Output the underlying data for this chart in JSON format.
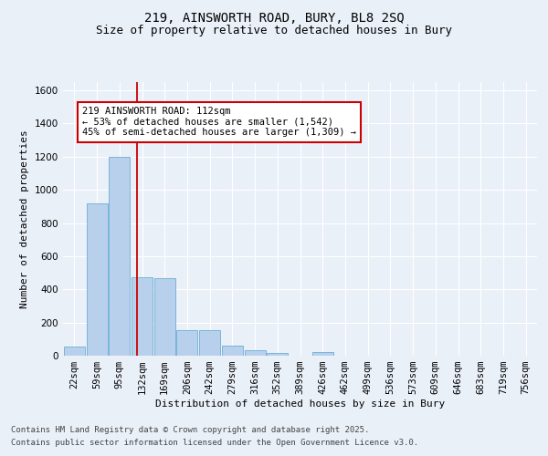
{
  "title_line1": "219, AINSWORTH ROAD, BURY, BL8 2SQ",
  "title_line2": "Size of property relative to detached houses in Bury",
  "xlabel": "Distribution of detached houses by size in Bury",
  "ylabel": "Number of detached properties",
  "bin_labels": [
    "22sqm",
    "59sqm",
    "95sqm",
    "132sqm",
    "169sqm",
    "206sqm",
    "242sqm",
    "279sqm",
    "316sqm",
    "352sqm",
    "389sqm",
    "426sqm",
    "462sqm",
    "499sqm",
    "536sqm",
    "573sqm",
    "609sqm",
    "646sqm",
    "683sqm",
    "719sqm",
    "756sqm"
  ],
  "bar_values": [
    55,
    920,
    1200,
    475,
    470,
    155,
    155,
    60,
    35,
    15,
    0,
    20,
    0,
    0,
    0,
    0,
    0,
    0,
    0,
    0,
    0
  ],
  "bar_color": "#b8d0eb",
  "bar_edge_color": "#6aaed6",
  "vline_x_bin": 2.78,
  "vline_color": "#cc0000",
  "ylim": [
    0,
    1650
  ],
  "yticks": [
    0,
    200,
    400,
    600,
    800,
    1000,
    1200,
    1400,
    1600
  ],
  "annotation_text": "219 AINSWORTH ROAD: 112sqm\n← 53% of detached houses are smaller (1,542)\n45% of semi-detached houses are larger (1,309) →",
  "annotation_box_facecolor": "#ffffff",
  "annotation_box_edgecolor": "#cc0000",
  "bg_color": "#eaf0f8",
  "plot_bg_color": "#eaf0f8",
  "title_fontsize": 10,
  "subtitle_fontsize": 9,
  "axis_label_fontsize": 8,
  "tick_fontsize": 7.5,
  "annotation_fontsize": 7.5,
  "footer_fontsize": 6.5,
  "footer_line1": "Contains HM Land Registry data © Crown copyright and database right 2025.",
  "footer_line2": "Contains public sector information licensed under the Open Government Licence v3.0."
}
